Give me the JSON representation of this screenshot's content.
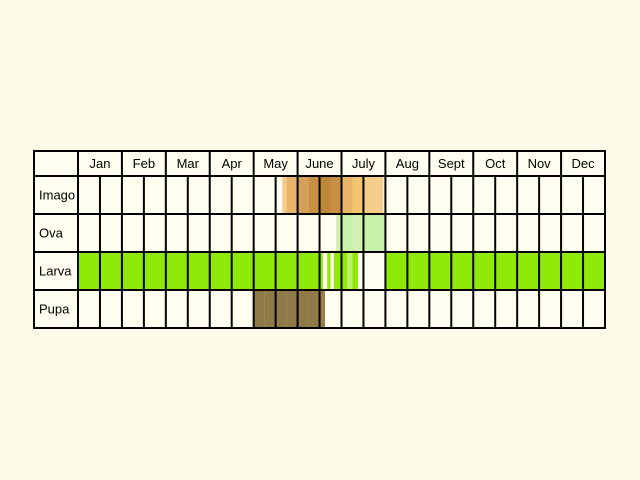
{
  "table": {
    "months": [
      "Jan",
      "Feb",
      "Mar",
      "Apr",
      "May",
      "June",
      "July",
      "Aug",
      "Sept",
      "Oct",
      "Nov",
      "Dec"
    ],
    "stages": [
      "Imago",
      "Ova",
      "Larva",
      "Pupa"
    ],
    "periods_per_month": 4,
    "fills": {
      "Imago": [
        {
          "from": 18.6,
          "to": 19,
          "color": "#f4cd8b"
        },
        {
          "from": 19,
          "to": 20,
          "color": "#e8b36b"
        },
        {
          "from": 20,
          "to": 21,
          "color": "#d5a05a"
        },
        {
          "from": 21,
          "to": 22,
          "color": "#c88f45"
        },
        {
          "from": 22,
          "to": 23,
          "color": "#bf8738"
        },
        {
          "from": 23,
          "to": 24,
          "color": "#c88f45"
        },
        {
          "from": 24,
          "to": 25,
          "color": "#e8b36b"
        },
        {
          "from": 25,
          "to": 26,
          "color": "#f1c56f"
        },
        {
          "from": 26,
          "to": 27,
          "color": "#f4cd8b"
        },
        {
          "from": 27,
          "to": 27.8,
          "color": "#f4cd8b"
        }
      ],
      "Ova": [
        {
          "from": 23.5,
          "to": 24,
          "color": "#d2efb4"
        },
        {
          "from": 24,
          "to": 25,
          "color": "#c8f1aa"
        },
        {
          "from": 25,
          "to": 26,
          "color": "#d2efb4"
        },
        {
          "from": 26,
          "to": 27,
          "color": "#c8f1aa"
        },
        {
          "from": 27,
          "to": 28,
          "color": "#c8f1aa"
        }
      ],
      "Larva": [
        {
          "from": 0,
          "to": 22.3,
          "color": "#8fea08"
        },
        {
          "from": 22.7,
          "to": 23,
          "color": "#8fea08"
        },
        {
          "from": 23.3,
          "to": 24,
          "color": "#8fea08"
        },
        {
          "from": 24,
          "to": 24.5,
          "color": "#8fea08"
        },
        {
          "from": 24.5,
          "to": 25,
          "color": "#b9f26b"
        },
        {
          "from": 25,
          "to": 25.5,
          "color": "#8fea08"
        },
        {
          "from": 28,
          "to": 48,
          "color": "#8fea08"
        }
      ],
      "Pupa": [
        {
          "from": 16,
          "to": 17,
          "color": "#8f7a48"
        },
        {
          "from": 17,
          "to": 18,
          "color": "#8f7a48"
        },
        {
          "from": 18,
          "to": 19,
          "color": "#8f7a48"
        },
        {
          "from": 19,
          "to": 20,
          "color": "#8f7a48"
        },
        {
          "from": 20,
          "to": 21,
          "color": "#8f7a48"
        },
        {
          "from": 21,
          "to": 22,
          "color": "#8f7a48"
        },
        {
          "from": 22,
          "to": 22.5,
          "color": "#987f4c"
        }
      ]
    },
    "colors": {
      "background": "#fefbeb",
      "cell": "#fffef0",
      "grid": "#000000"
    }
  }
}
